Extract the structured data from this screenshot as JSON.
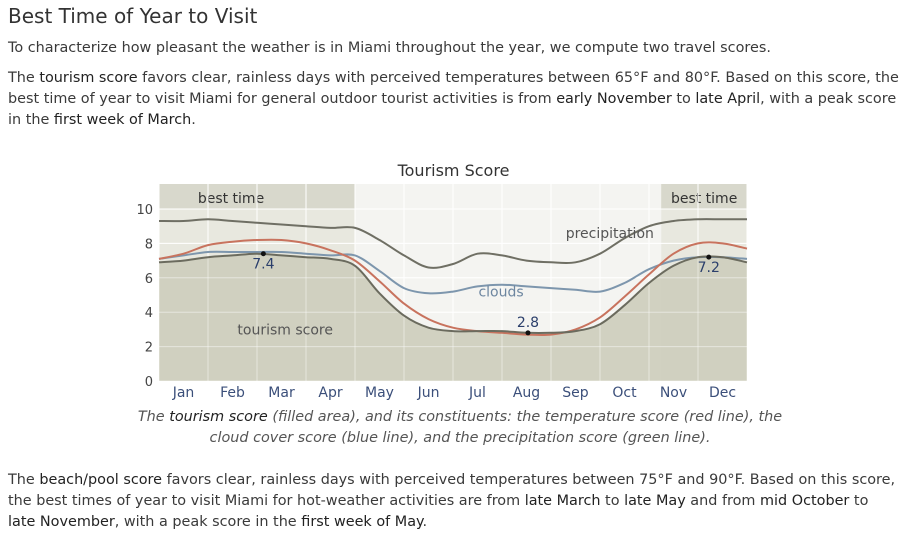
{
  "section": {
    "heading": "Best Time of Year to Visit",
    "intro": "To characterize how pleasant the weather is in Miami throughout the year, we compute two travel scores.",
    "tourism_paragraph": {
      "t1": "The ",
      "h1": "tourism score",
      "t2": " favors clear, rainless days with perceived temperatures between 65°F and 80°F. Based on this score, the best time of year to visit Miami for general outdoor tourist activities is from ",
      "h2": "early November",
      "t3": " to ",
      "h3": "late April",
      "t4": ", with a peak score in the ",
      "h4": "first week of March",
      "t5": "."
    },
    "caption": {
      "t1": "The ",
      "h1": "tourism score",
      "t2": " (filled area), and its constituents: the temperature score (red line), the cloud cover score (blue line), and the precipitation score (green line)."
    },
    "beach_paragraph": {
      "t1": "The ",
      "h1": "beach/pool score",
      "t2": " favors clear, rainless days with perceived temperatures between 75°F and 90°F. Based on this score, the best times of year to visit Miami for hot-weather activities are from ",
      "h2": "late March",
      "t3": " to ",
      "h3": "late May",
      "t4": " and from ",
      "h4": "mid October",
      "t5": " to ",
      "h5": "late November",
      "t6": ", with a peak score in the ",
      "h6": "first week of May",
      "t7": "."
    }
  },
  "chart_data": {
    "type": "area",
    "title": "Tourism Score",
    "ylim": [
      0,
      10
    ],
    "yticks": [
      "0",
      "2",
      "4",
      "6",
      "8",
      "10"
    ],
    "xlim": [
      0,
      12
    ],
    "months": [
      "Jan",
      "Feb",
      "Mar",
      "Apr",
      "May",
      "Jun",
      "Jul",
      "Aug",
      "Sep",
      "Oct",
      "Nov",
      "Dec"
    ],
    "best_time_label": "best time",
    "best_time_ranges": [
      [
        0,
        4.0
      ],
      [
        10.25,
        12
      ]
    ],
    "grid": true,
    "series": [
      {
        "key": "tourism",
        "label": "tourism score",
        "color": "#6b6b5e",
        "fill": "#cfcfbe",
        "x": [
          0,
          0.5,
          1,
          1.5,
          2,
          2.5,
          3,
          3.5,
          4,
          4.5,
          5,
          5.5,
          6,
          6.5,
          7,
          7.5,
          8,
          8.5,
          9,
          9.5,
          10,
          10.5,
          11,
          11.5,
          12
        ],
        "values": [
          6.9,
          7.0,
          7.2,
          7.3,
          7.4,
          7.3,
          7.2,
          7.1,
          6.7,
          5.1,
          3.8,
          3.1,
          2.9,
          2.9,
          2.9,
          2.8,
          2.8,
          2.9,
          3.3,
          4.4,
          5.7,
          6.7,
          7.2,
          7.2,
          6.9
        ]
      },
      {
        "key": "temperature",
        "color": "#c8735e",
        "x": [
          0,
          0.5,
          1,
          1.5,
          2,
          2.5,
          3,
          3.5,
          4,
          4.5,
          5,
          5.5,
          6,
          6.5,
          7,
          7.5,
          8,
          8.5,
          9,
          9.5,
          10,
          10.5,
          11,
          11.5,
          12
        ],
        "values": [
          7.1,
          7.4,
          7.9,
          8.1,
          8.2,
          8.2,
          8.0,
          7.6,
          7.0,
          5.8,
          4.5,
          3.6,
          3.1,
          2.9,
          2.8,
          2.7,
          2.7,
          3.0,
          3.7,
          4.9,
          6.2,
          7.4,
          8.0,
          8.0,
          7.7
        ]
      },
      {
        "key": "clouds",
        "label": "clouds",
        "color": "#7d96ad",
        "x": [
          0,
          0.5,
          1,
          1.5,
          2,
          2.5,
          3,
          3.5,
          4,
          4.5,
          5,
          5.5,
          6,
          6.5,
          7,
          7.5,
          8,
          8.5,
          9,
          9.5,
          10,
          10.5,
          11,
          11.5,
          12
        ],
        "values": [
          7.1,
          7.3,
          7.5,
          7.5,
          7.5,
          7.5,
          7.4,
          7.3,
          7.3,
          6.4,
          5.4,
          5.1,
          5.2,
          5.5,
          5.6,
          5.5,
          5.4,
          5.3,
          5.2,
          5.7,
          6.5,
          7.0,
          7.2,
          7.2,
          7.1
        ]
      },
      {
        "key": "precipitation",
        "label": "precipitation",
        "color": "#6f6f64",
        "x": [
          0,
          0.5,
          1,
          1.5,
          2,
          2.5,
          3,
          3.5,
          4,
          4.5,
          5,
          5.5,
          6,
          6.5,
          7,
          7.5,
          8,
          8.5,
          9,
          9.5,
          10,
          10.5,
          11,
          11.5,
          12
        ],
        "values": [
          9.3,
          9.3,
          9.4,
          9.3,
          9.2,
          9.1,
          9.0,
          8.9,
          8.9,
          8.2,
          7.3,
          6.6,
          6.8,
          7.4,
          7.3,
          7.0,
          6.9,
          6.9,
          7.4,
          8.3,
          9.0,
          9.3,
          9.4,
          9.4,
          9.4
        ]
      }
    ],
    "annotations": [
      {
        "label": "7.4",
        "x": 2.13,
        "y": 7.4
      },
      {
        "label": "2.8",
        "x": 7.53,
        "y": 2.8
      },
      {
        "label": "7.2",
        "x": 11.22,
        "y": 7.2
      }
    ]
  }
}
